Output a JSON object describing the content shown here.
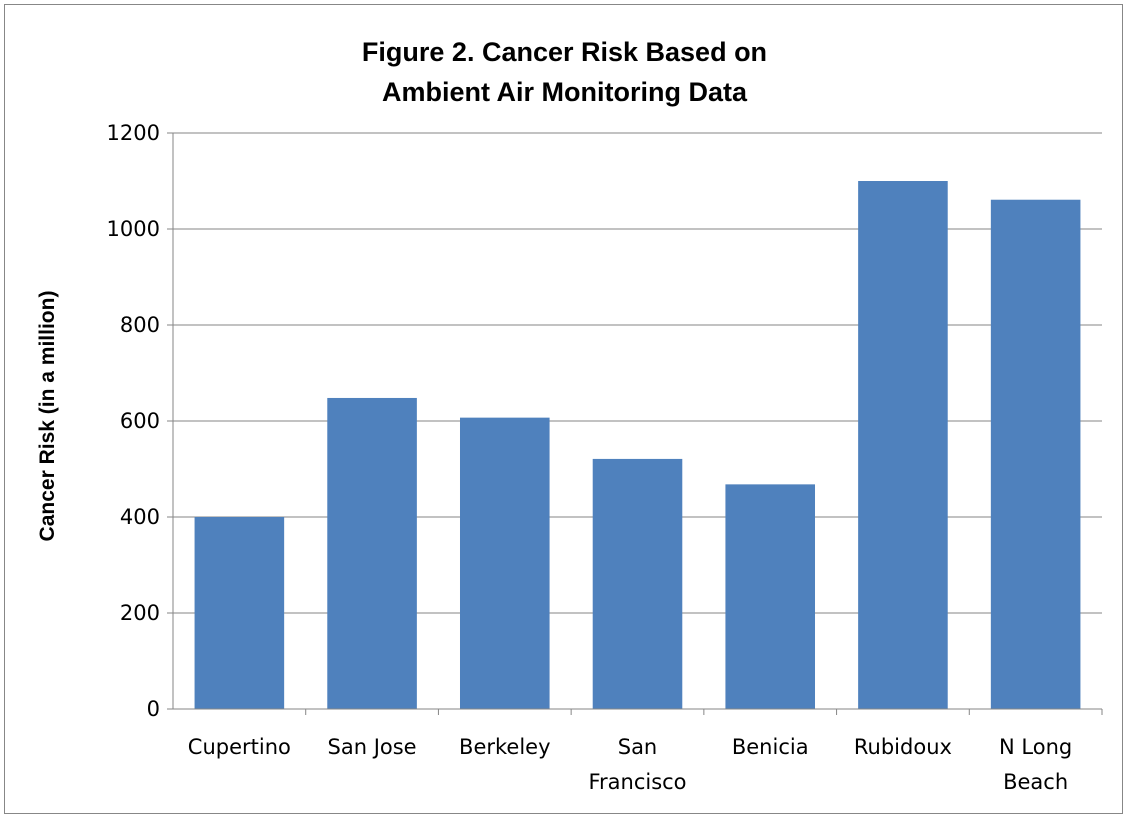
{
  "chart_data": {
    "type": "bar",
    "title_lines": [
      "Figure 2.  Cancer Risk Based on",
      "Ambient Air Monitoring Data"
    ],
    "ylabel": "Cancer Risk (in a million)",
    "xlabel": "",
    "ylim": [
      0,
      1200
    ],
    "yticks": [
      0,
      200,
      400,
      600,
      800,
      1000,
      1200
    ],
    "grid": true,
    "legend": "none",
    "bar_color": "#4F81BD",
    "categories": [
      [
        "Cupertino"
      ],
      [
        "San Jose"
      ],
      [
        "Berkeley"
      ],
      [
        "San",
        "Francisco"
      ],
      [
        "Benicia"
      ],
      [
        "Rubidoux"
      ],
      [
        "N Long",
        "Beach"
      ]
    ],
    "values": [
      400,
      648,
      607,
      521,
      468,
      1100,
      1061
    ]
  }
}
